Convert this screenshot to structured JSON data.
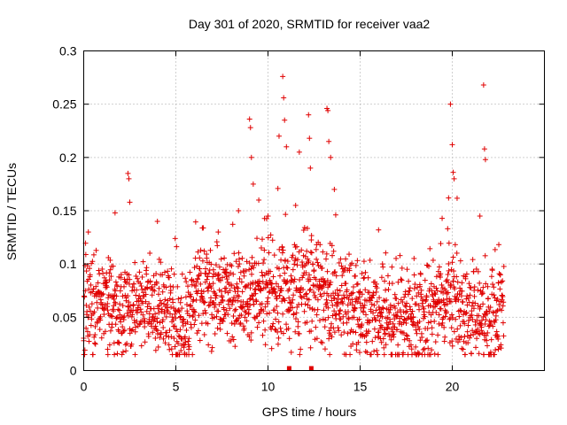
{
  "chart_data": {
    "type": "scatter",
    "title": "Day 301 of 2020, SRMTID for receiver vaa2",
    "xlabel": "GPS time / hours",
    "ylabel": "SRMTID / TECUs",
    "xlim": [
      0,
      25
    ],
    "ylim": [
      0,
      0.3
    ],
    "xticks": [
      0,
      5,
      10,
      15,
      20
    ],
    "xtick_labels": [
      "0",
      "5",
      "10",
      "15",
      "20"
    ],
    "yticks": [
      0,
      0.05,
      0.1,
      0.15,
      0.2,
      0.25,
      0.3
    ],
    "ytick_labels": [
      "0",
      "0.05",
      "0.1",
      "0.15",
      "0.2",
      "0.25",
      "0.3"
    ],
    "grid": true,
    "marker": "plus",
    "color": "#e00000",
    "series_name": "SRMTID",
    "baseline_profile": [
      [
        0.0,
        0.062
      ],
      [
        1.0,
        0.065
      ],
      [
        2.0,
        0.058
      ],
      [
        3.0,
        0.06
      ],
      [
        4.0,
        0.056
      ],
      [
        5.0,
        0.045
      ],
      [
        5.5,
        0.038
      ],
      [
        6.0,
        0.07
      ],
      [
        7.0,
        0.075
      ],
      [
        8.0,
        0.07
      ],
      [
        9.0,
        0.075
      ],
      [
        10.0,
        0.072
      ],
      [
        11.0,
        0.07
      ],
      [
        12.0,
        0.075
      ],
      [
        13.0,
        0.072
      ],
      [
        14.0,
        0.068
      ],
      [
        15.0,
        0.052
      ],
      [
        16.0,
        0.05
      ],
      [
        17.0,
        0.05
      ],
      [
        18.0,
        0.052
      ],
      [
        19.0,
        0.055
      ],
      [
        19.8,
        0.075
      ],
      [
        20.5,
        0.065
      ],
      [
        21.0,
        0.055
      ],
      [
        22.0,
        0.05
      ],
      [
        22.8,
        0.058
      ]
    ],
    "notable_points": [
      [
        0.0,
        0.028
      ],
      [
        0.25,
        0.13
      ],
      [
        1.7,
        0.148
      ],
      [
        2.4,
        0.185
      ],
      [
        2.45,
        0.18
      ],
      [
        2.5,
        0.158
      ],
      [
        4.0,
        0.14
      ],
      [
        7.3,
        0.13
      ],
      [
        8.4,
        0.15
      ],
      [
        9.0,
        0.236
      ],
      [
        9.05,
        0.228
      ],
      [
        9.1,
        0.2
      ],
      [
        9.2,
        0.175
      ],
      [
        9.5,
        0.16
      ],
      [
        10.0,
        0.145
      ],
      [
        10.6,
        0.22
      ],
      [
        10.8,
        0.276
      ],
      [
        10.85,
        0.256
      ],
      [
        10.9,
        0.235
      ],
      [
        11.0,
        0.21
      ],
      [
        11.5,
        0.155
      ],
      [
        11.7,
        0.205
      ],
      [
        12.2,
        0.24
      ],
      [
        12.25,
        0.218
      ],
      [
        12.3,
        0.19
      ],
      [
        13.2,
        0.246
      ],
      [
        13.25,
        0.244
      ],
      [
        13.3,
        0.215
      ],
      [
        13.4,
        0.2
      ],
      [
        13.6,
        0.17
      ],
      [
        16.0,
        0.132
      ],
      [
        19.8,
        0.162
      ],
      [
        19.9,
        0.25
      ],
      [
        20.0,
        0.212
      ],
      [
        20.05,
        0.186
      ],
      [
        20.1,
        0.18
      ],
      [
        21.5,
        0.145
      ],
      [
        21.7,
        0.268
      ],
      [
        21.75,
        0.208
      ],
      [
        21.8,
        0.198
      ],
      [
        1.3,
        0.02
      ],
      [
        5.7,
        0.02
      ],
      [
        18.2,
        0.016
      ],
      [
        22.5,
        0.02
      ]
    ],
    "zero_points": [
      11.15,
      12.35
    ]
  }
}
